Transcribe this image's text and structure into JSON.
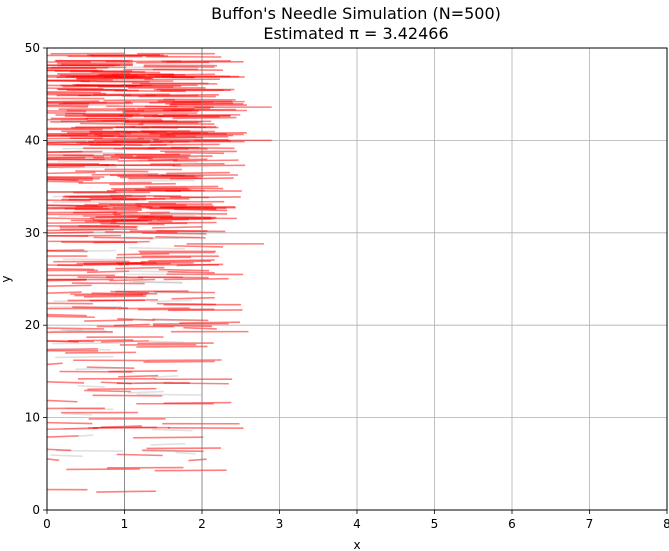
{
  "chart_data": {
    "type": "scatter",
    "title_line1": "Buffon's Needle Simulation (N=500)",
    "title_line2": "Estimated π = 3.42466",
    "xlabel": "x",
    "ylabel": "y",
    "xlim": [
      0,
      8
    ],
    "ylim": [
      0,
      50
    ],
    "xticks": [
      "0",
      "1",
      "2",
      "3",
      "4",
      "5",
      "6",
      "7",
      "8"
    ],
    "yticks": [
      "0",
      "10",
      "20",
      "30",
      "40",
      "50"
    ],
    "grid": true,
    "needle_length": 1,
    "vertical_lines_at": [
      1,
      2
    ],
    "series": [
      {
        "color": "#ff0000",
        "opacity": 0.5
      },
      {
        "color": "#aaaaaa",
        "opacity": 0.35
      }
    ],
    "sample_needles": [
      {
        "x": 0.1,
        "y": 49.2,
        "angle": 2,
        "crosses": true
      },
      {
        "x": 1.4,
        "y": 43.4,
        "angle": 1,
        "crosses": true
      },
      {
        "x": 2.4,
        "y": 43.6,
        "angle": 1,
        "crosses": true
      },
      {
        "x": 0.35,
        "y": 41.3,
        "angle": 0,
        "crosses": true
      },
      {
        "x": 2.4,
        "y": 40.0,
        "angle": 3,
        "crosses": true
      },
      {
        "x": 0.45,
        "y": 32.0,
        "angle": 5,
        "crosses": true
      },
      {
        "x": 2.3,
        "y": 28.8,
        "angle": 2,
        "crosses": true
      },
      {
        "x": 0.4,
        "y": 21.8,
        "angle": 4,
        "crosses": true
      },
      {
        "x": 2.1,
        "y": 19.3,
        "angle": 3,
        "crosses": true
      },
      {
        "x": 0.25,
        "y": 11.0,
        "angle": 6,
        "crosses": true
      },
      {
        "x": 0.6,
        "y": 47.5,
        "angle": 2,
        "crosses": false
      },
      {
        "x": 1.5,
        "y": 42.0,
        "angle": 0,
        "crosses": false
      },
      {
        "x": 1.3,
        "y": 33.0,
        "angle": 3,
        "crosses": false
      },
      {
        "x": 1.5,
        "y": 25.5,
        "angle": 1,
        "crosses": false
      },
      {
        "x": 0.9,
        "y": 14.2,
        "angle": 2,
        "crosses": false
      }
    ]
  }
}
